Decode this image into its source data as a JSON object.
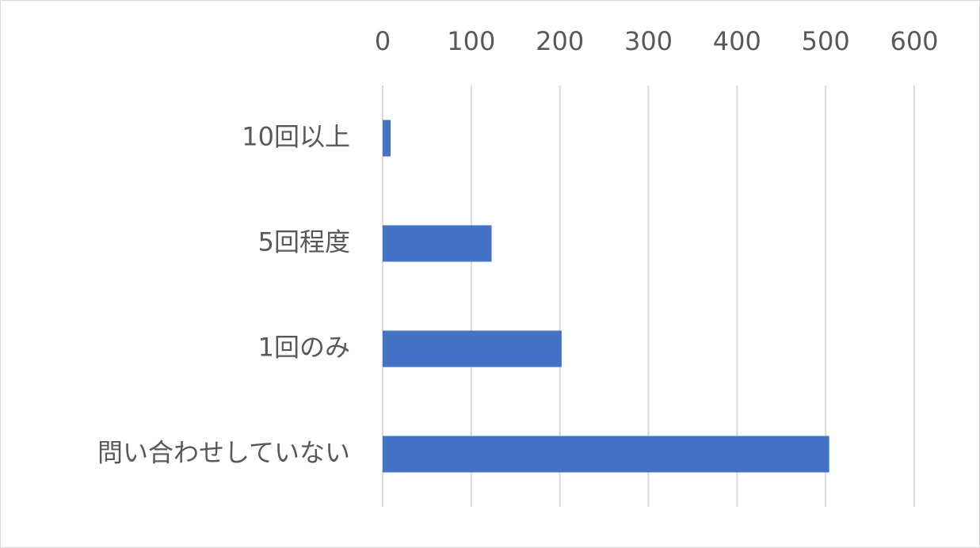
{
  "chart_data": {
    "type": "bar",
    "orientation": "horizontal",
    "categories": [
      "10回以上",
      "5回程度",
      "1回のみ",
      "問い合わせしていない"
    ],
    "values": [
      9,
      123,
      202,
      504
    ],
    "color": "#4472c4",
    "xlim": [
      0,
      600
    ],
    "xticks": [
      0,
      100,
      200,
      300,
      400,
      500,
      600
    ],
    "grid": true
  }
}
